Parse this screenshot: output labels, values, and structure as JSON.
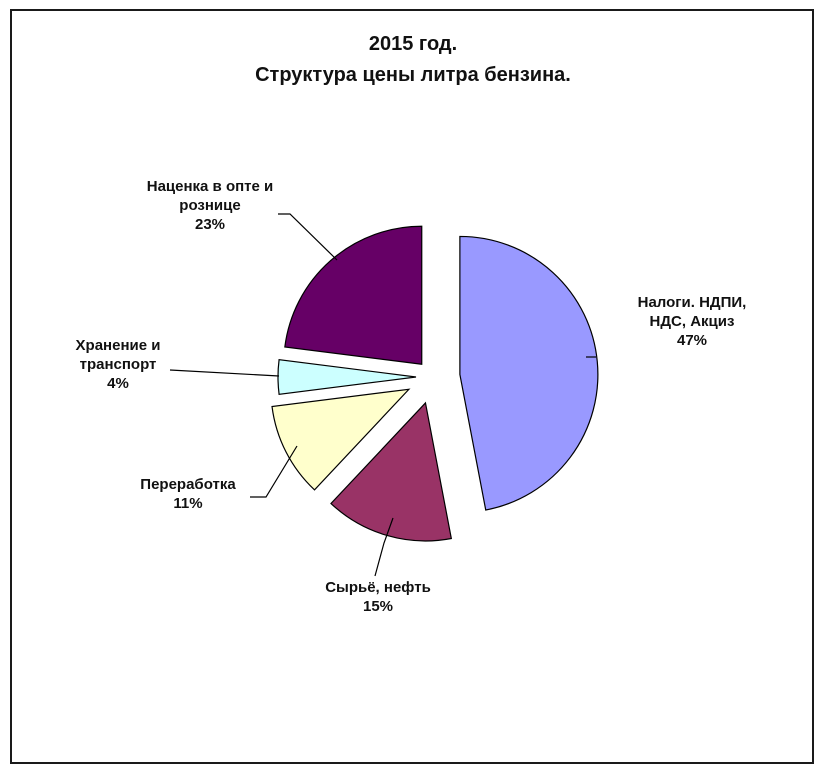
{
  "chart_data": {
    "type": "pie",
    "title": "2015 год.",
    "subtitle": "Структура цены литра бензина.",
    "slices": [
      {
        "label_lines": [
          "Налоги. НДПИ,",
          "НДС, Акциз"
        ],
        "value_text": "47%",
        "value": 47,
        "color": "#9999ff"
      },
      {
        "label_lines": [
          "Сырьё, нефть"
        ],
        "value_text": "15%",
        "value": 15,
        "color": "#993366"
      },
      {
        "label_lines": [
          "Переработка"
        ],
        "value_text": "11%",
        "value": 11,
        "color": "#ffffcc"
      },
      {
        "label_lines": [
          "Хранение и",
          "транспорт"
        ],
        "value_text": "4%",
        "value": 4,
        "color": "#ccffff"
      },
      {
        "label_lines": [
          "Наценка в опте и",
          "рознице"
        ],
        "value_text": "23%",
        "value": 23,
        "color": "#660066"
      }
    ]
  }
}
